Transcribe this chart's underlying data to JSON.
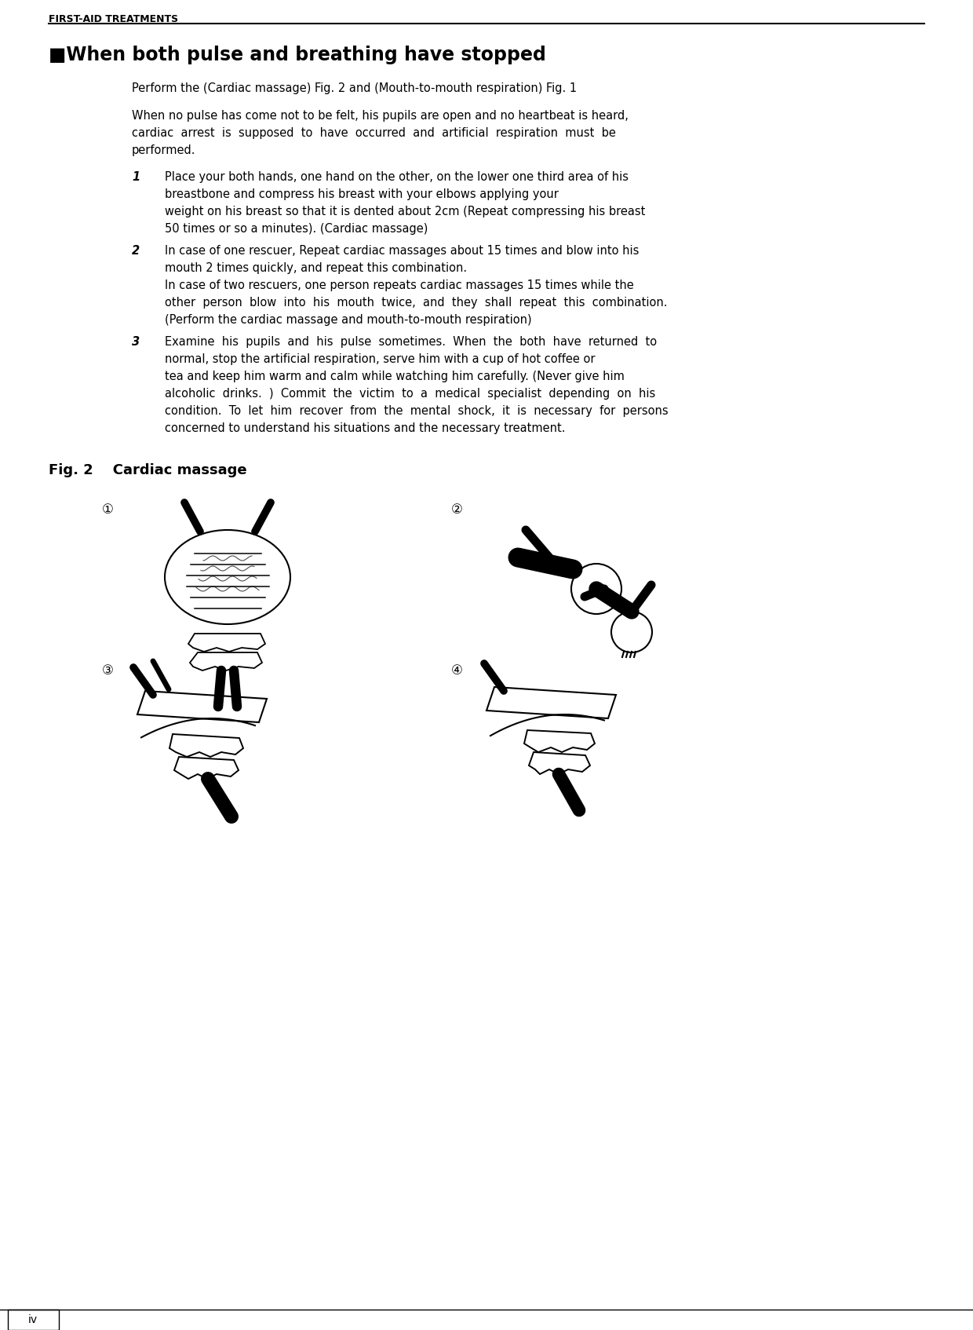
{
  "page_header": "FIRST-AID TREATMENTS",
  "section_title": "■When both pulse and breathing have stopped",
  "intro_line": "Perform the (Cardiac massage) Fig. 2 and (Mouth-to-mouth respiration) Fig. 1",
  "fig_label": "Fig. 2    Cardiac massage",
  "page_num": "iv",
  "bg_color": "#ffffff",
  "text_color": "#000000"
}
